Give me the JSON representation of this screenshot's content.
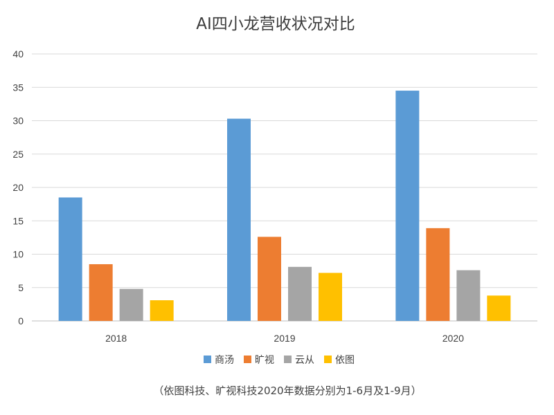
{
  "chart_data": {
    "type": "bar",
    "title": "AI四小龙营收状况对比",
    "note": "（依图科技、旷视科技2020年数据分别为1-6月及1-9月）",
    "categories": [
      "2018",
      "2019",
      "2020"
    ],
    "series": [
      {
        "name": "商汤",
        "color": "#5b9bd5",
        "values": [
          18.5,
          30.3,
          34.5
        ]
      },
      {
        "name": "旷视",
        "color": "#ed7d31",
        "values": [
          8.5,
          12.6,
          13.9
        ]
      },
      {
        "name": "云从",
        "color": "#a5a5a5",
        "values": [
          4.8,
          8.1,
          7.6
        ]
      },
      {
        "name": "依图",
        "color": "#ffc000",
        "values": [
          3.1,
          7.2,
          3.8
        ]
      }
    ],
    "ylim": [
      0,
      40
    ],
    "yticks": [
      0,
      5,
      10,
      15,
      20,
      25,
      30,
      35,
      40
    ],
    "grid": true,
    "legend_position": "bottom",
    "gridline_color": "#d9d9d9",
    "axis_line_color": "#bfbfbf"
  }
}
